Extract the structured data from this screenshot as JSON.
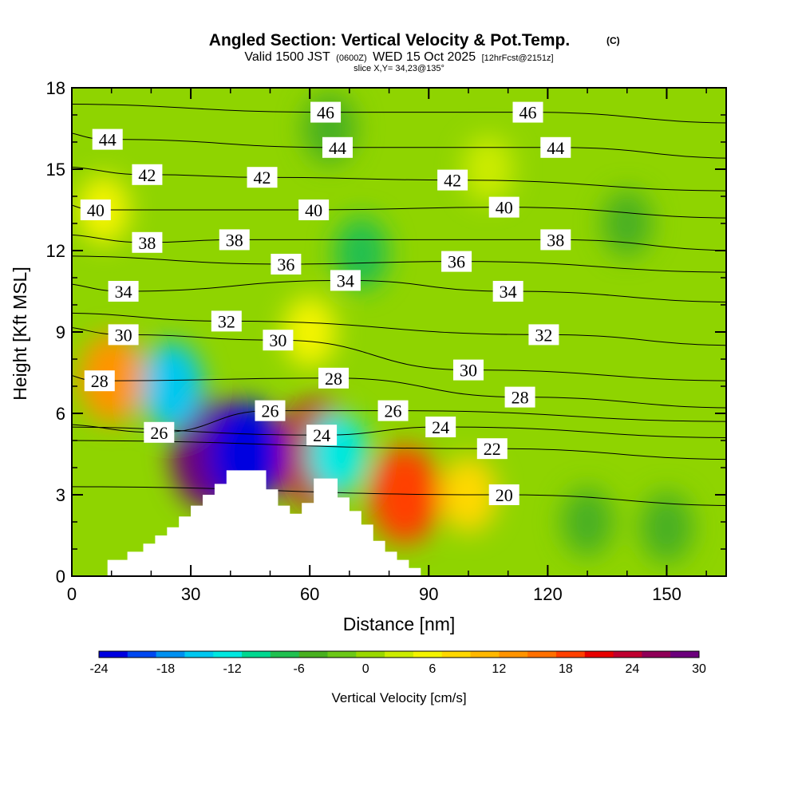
{
  "header": {
    "title": "Angled Section: Vertical Velocity & Pot.Temp.",
    "title_mark": "(C)",
    "valid_prefix": "Valid 1500 JST",
    "valid_utc": "(0600Z)",
    "valid_date": "WED 15 Oct 2025",
    "valid_fcst": "[12hrFcst@2151z]",
    "slice": "slice X,Y= 34,23@135°"
  },
  "chart_data": {
    "type": "heatmap",
    "title": "Angled Section: Vertical Velocity & Pot.Temp.",
    "xlabel": "Distance [nm]",
    "ylabel": "Height [Kft MSL]",
    "xlim": [
      0,
      165
    ],
    "ylim": [
      0,
      18
    ],
    "x_ticks": [
      "0",
      "30",
      "60",
      "90",
      "120",
      "150"
    ],
    "y_ticks": [
      "0",
      "3",
      "6",
      "9",
      "12",
      "15",
      "18"
    ],
    "colorbar": {
      "label": "Vertical Velocity [cm/s]",
      "min": -24,
      "max": 30,
      "ticks": [
        "-24",
        "-18",
        "-12",
        "-6",
        "0",
        "6",
        "12",
        "18",
        "24",
        "30"
      ],
      "colors": [
        "#0000e0",
        "#0048f0",
        "#0090f0",
        "#00c8f0",
        "#00e8e0",
        "#00d890",
        "#20c050",
        "#48b020",
        "#6cc818",
        "#9ad800",
        "#ccec00",
        "#f4f400",
        "#ffd800",
        "#ffb800",
        "#ff9400",
        "#ff7000",
        "#ff4000",
        "#e80000",
        "#c00030",
        "#900058",
        "#6c007c"
      ]
    },
    "velocity_cells": [
      {
        "x": 35,
        "y": 4.5,
        "value": 28
      },
      {
        "x": 62,
        "y": 4.5,
        "value": 24
      },
      {
        "x": 44,
        "y": 4.5,
        "value": -22
      },
      {
        "x": 67,
        "y": 4.5,
        "value": -12
      },
      {
        "x": 25,
        "y": 7.0,
        "value": -14
      },
      {
        "x": 84,
        "y": 3.0,
        "value": 18
      },
      {
        "x": 10,
        "y": 7.3,
        "value": 14
      },
      {
        "x": 100,
        "y": 3.0,
        "value": 8
      },
      {
        "x": 130,
        "y": 2.0,
        "value": -5
      },
      {
        "x": 150,
        "y": 1.8,
        "value": -6
      },
      {
        "x": 73,
        "y": 11.9,
        "value": -7
      },
      {
        "x": 65,
        "y": 16.5,
        "value": -6
      },
      {
        "x": 105,
        "y": 15.0,
        "value": 4
      },
      {
        "x": 8,
        "y": 13.5,
        "value": 5
      },
      {
        "x": 140,
        "y": 13.0,
        "value": -4
      },
      {
        "x": 60,
        "y": 9.0,
        "value": 6
      }
    ],
    "terrain": [
      [
        0,
        0
      ],
      [
        9,
        0
      ],
      [
        9,
        0.6
      ],
      [
        14,
        0.6
      ],
      [
        14,
        0.9
      ],
      [
        18,
        0.9
      ],
      [
        18,
        1.2
      ],
      [
        21,
        1.2
      ],
      [
        21,
        1.5
      ],
      [
        24,
        1.5
      ],
      [
        24,
        1.8
      ],
      [
        27,
        1.8
      ],
      [
        27,
        2.2
      ],
      [
        30,
        2.2
      ],
      [
        30,
        2.6
      ],
      [
        33,
        2.6
      ],
      [
        33,
        3.0
      ],
      [
        36,
        3.0
      ],
      [
        36,
        3.4
      ],
      [
        39,
        3.4
      ],
      [
        39,
        3.9
      ],
      [
        49,
        3.9
      ],
      [
        49,
        3.2
      ],
      [
        52,
        3.2
      ],
      [
        52,
        2.6
      ],
      [
        55,
        2.6
      ],
      [
        55,
        2.3
      ],
      [
        58,
        2.3
      ],
      [
        58,
        2.7
      ],
      [
        61,
        2.7
      ],
      [
        61,
        3.6
      ],
      [
        67,
        3.6
      ],
      [
        67,
        2.9
      ],
      [
        70,
        2.9
      ],
      [
        70,
        2.4
      ],
      [
        73,
        2.4
      ],
      [
        73,
        1.9
      ],
      [
        76,
        1.9
      ],
      [
        76,
        1.3
      ],
      [
        79,
        1.3
      ],
      [
        79,
        0.9
      ],
      [
        82,
        0.9
      ],
      [
        82,
        0.6
      ],
      [
        85,
        0.6
      ],
      [
        85,
        0.3
      ],
      [
        88,
        0.3
      ],
      [
        88,
        0
      ]
    ],
    "theta_contours": [
      {
        "label": "20",
        "at": [
          109,
          3.0
        ]
      },
      {
        "label": "22",
        "at": [
          106,
          4.7
        ]
      },
      {
        "label": "24",
        "at": [
          93,
          5.5
        ]
      },
      {
        "label": "24",
        "at": [
          63,
          5.2
        ]
      },
      {
        "label": "26",
        "at": [
          22,
          5.3
        ]
      },
      {
        "label": "26",
        "at": [
          50,
          6.1
        ]
      },
      {
        "label": "26",
        "at": [
          81,
          6.1
        ]
      },
      {
        "label": "28",
        "at": [
          7,
          7.2
        ]
      },
      {
        "label": "28",
        "at": [
          66,
          7.3
        ]
      },
      {
        "label": "28",
        "at": [
          113,
          6.6
        ]
      },
      {
        "label": "30",
        "at": [
          13,
          8.9
        ]
      },
      {
        "label": "30",
        "at": [
          52,
          8.7
        ]
      },
      {
        "label": "30",
        "at": [
          100,
          7.6
        ]
      },
      {
        "label": "32",
        "at": [
          39,
          9.4
        ]
      },
      {
        "label": "32",
        "at": [
          119,
          8.9
        ]
      },
      {
        "label": "34",
        "at": [
          13,
          10.5
        ]
      },
      {
        "label": "34",
        "at": [
          69,
          10.9
        ]
      },
      {
        "label": "34",
        "at": [
          110,
          10.5
        ]
      },
      {
        "label": "36",
        "at": [
          54,
          11.5
        ]
      },
      {
        "label": "36",
        "at": [
          97,
          11.6
        ]
      },
      {
        "label": "38",
        "at": [
          19,
          12.3
        ]
      },
      {
        "label": "38",
        "at": [
          41,
          12.4
        ]
      },
      {
        "label": "38",
        "at": [
          122,
          12.4
        ]
      },
      {
        "label": "40",
        "at": [
          6,
          13.5
        ]
      },
      {
        "label": "40",
        "at": [
          61,
          13.5
        ]
      },
      {
        "label": "40",
        "at": [
          109,
          13.6
        ]
      },
      {
        "label": "42",
        "at": [
          19,
          14.8
        ]
      },
      {
        "label": "42",
        "at": [
          48,
          14.7
        ]
      },
      {
        "label": "42",
        "at": [
          96,
          14.6
        ]
      },
      {
        "label": "44",
        "at": [
          9,
          16.1
        ]
      },
      {
        "label": "44",
        "at": [
          67,
          15.8
        ]
      },
      {
        "label": "44",
        "at": [
          122,
          15.8
        ]
      },
      {
        "label": "46",
        "at": [
          64,
          17.1
        ]
      },
      {
        "label": "46",
        "at": [
          115,
          17.1
        ]
      }
    ]
  }
}
